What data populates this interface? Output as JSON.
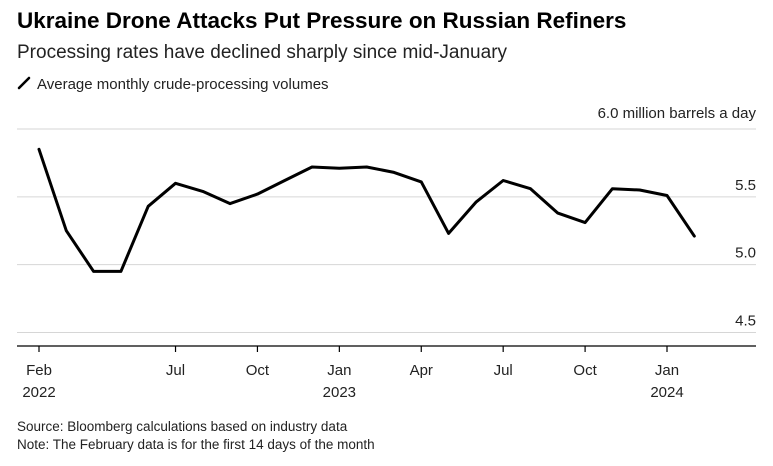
{
  "title": "Ukraine Drone Attacks Put Pressure on Russian Refiners",
  "subtitle": "Processing rates have declined sharply since mid-January",
  "legend_label": "Average monthly crude-processing volumes",
  "source": "Source: Bloomberg calculations based on industry data",
  "note": "Note: The February data is for the first 14 days of the month",
  "colors": {
    "line": "#000000",
    "grid": "#d6d6d6",
    "axis": "#000000",
    "text": "#222222"
  },
  "chart_data": {
    "type": "line",
    "title": "Ukraine Drone Attacks Put Pressure on Russian Refiners",
    "subtitle": "Processing rates have declined sharply since mid-January",
    "unit_label": "6.0 million barrels a day",
    "ylim": [
      4.4,
      6.0
    ],
    "yticks": [
      {
        "value": 4.5,
        "label": "4.5"
      },
      {
        "value": 5.0,
        "label": "5.0"
      },
      {
        "value": 5.5,
        "label": "5.5"
      },
      {
        "value": 6.0,
        "label": "6.0"
      }
    ],
    "grid": true,
    "y_axis_side": "right",
    "x_range": [
      "2022-01",
      "2024-06"
    ],
    "xticks": [
      {
        "at": "2022-02",
        "label": "Feb",
        "sublabel": "2022"
      },
      {
        "at": "2022-07",
        "label": "Jul",
        "sublabel": ""
      },
      {
        "at": "2022-10",
        "label": "Oct",
        "sublabel": ""
      },
      {
        "at": "2023-01",
        "label": "Jan",
        "sublabel": "2023"
      },
      {
        "at": "2023-04",
        "label": "Apr",
        "sublabel": ""
      },
      {
        "at": "2023-07",
        "label": "Jul",
        "sublabel": ""
      },
      {
        "at": "2023-10",
        "label": "Oct",
        "sublabel": ""
      },
      {
        "at": "2024-01",
        "label": "Jan",
        "sublabel": "2024"
      }
    ],
    "series": [
      {
        "name": "Average monthly crude-processing volumes",
        "points": [
          {
            "x": "2022-02",
            "y": 5.85
          },
          {
            "x": "2022-03",
            "y": 5.25
          },
          {
            "x": "2022-04",
            "y": 4.95
          },
          {
            "x": "2022-05",
            "y": 4.95
          },
          {
            "x": "2022-06",
            "y": 5.43
          },
          {
            "x": "2022-07",
            "y": 5.6
          },
          {
            "x": "2022-08",
            "y": 5.54
          },
          {
            "x": "2022-09",
            "y": 5.45
          },
          {
            "x": "2022-10",
            "y": 5.52
          },
          {
            "x": "2022-11",
            "y": 5.62
          },
          {
            "x": "2022-12",
            "y": 5.72
          },
          {
            "x": "2023-01",
            "y": 5.71
          },
          {
            "x": "2023-02",
            "y": 5.72
          },
          {
            "x": "2023-03",
            "y": 5.68
          },
          {
            "x": "2023-04",
            "y": 5.61
          },
          {
            "x": "2023-05",
            "y": 5.23
          },
          {
            "x": "2023-06",
            "y": 5.46
          },
          {
            "x": "2023-07",
            "y": 5.62
          },
          {
            "x": "2023-08",
            "y": 5.56
          },
          {
            "x": "2023-09",
            "y": 5.38
          },
          {
            "x": "2023-10",
            "y": 5.31
          },
          {
            "x": "2023-11",
            "y": 5.56
          },
          {
            "x": "2023-12",
            "y": 5.55
          },
          {
            "x": "2024-01",
            "y": 5.51
          },
          {
            "x": "2024-02",
            "y": 5.21
          }
        ]
      }
    ]
  }
}
